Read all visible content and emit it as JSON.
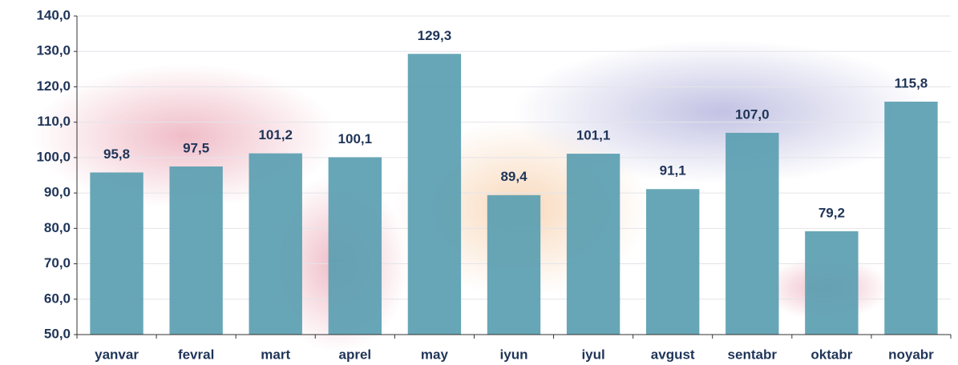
{
  "chart_data": {
    "type": "bar",
    "categories": [
      "yanvar",
      "fevral",
      "mart",
      "aprel",
      "may",
      "iyun",
      "iyul",
      "avgust",
      "sentabr",
      "oktabr",
      "noyabr"
    ],
    "values": [
      95.8,
      97.5,
      101.2,
      100.1,
      129.3,
      89.4,
      101.1,
      91.1,
      107.0,
      79.2,
      115.8
    ],
    "value_labels": [
      "95,8",
      "97,5",
      "101,2",
      "100,1",
      "129,3",
      "89,4",
      "101,1",
      "91,1",
      "107,0",
      "79,2",
      "115,8"
    ],
    "color": "#5a9eb1",
    "ylim": [
      50,
      140
    ],
    "yticks": [
      {
        "value": 50,
        "label": "50,0"
      },
      {
        "value": 60,
        "label": "60,0"
      },
      {
        "value": 70,
        "label": "70,0"
      },
      {
        "value": 80,
        "label": "80,0"
      },
      {
        "value": 90,
        "label": "90,0"
      },
      {
        "value": 100,
        "label": "100,0"
      },
      {
        "value": 110,
        "label": "110,0"
      },
      {
        "value": 120,
        "label": "120,0"
      },
      {
        "value": 130,
        "label": "130,0"
      },
      {
        "value": 140,
        "label": "140,0"
      }
    ],
    "grid": true
  }
}
